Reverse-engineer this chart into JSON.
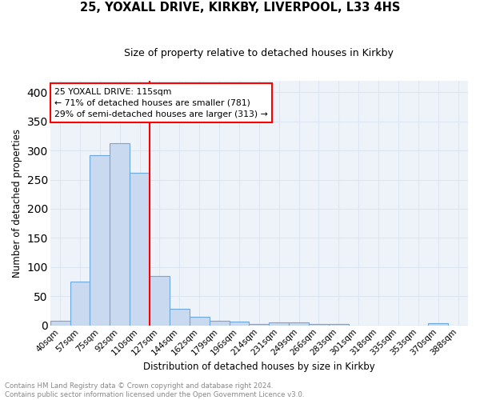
{
  "title1": "25, YOXALL DRIVE, KIRKBY, LIVERPOOL, L33 4HS",
  "title2": "Size of property relative to detached houses in Kirkby",
  "xlabel": "Distribution of detached houses by size in Kirkby",
  "ylabel": "Number of detached properties",
  "bin_labels": [
    "40sqm",
    "57sqm",
    "75sqm",
    "92sqm",
    "110sqm",
    "127sqm",
    "144sqm",
    "162sqm",
    "179sqm",
    "196sqm",
    "214sqm",
    "231sqm",
    "249sqm",
    "266sqm",
    "283sqm",
    "301sqm",
    "318sqm",
    "335sqm",
    "353sqm",
    "370sqm",
    "388sqm"
  ],
  "bar_values": [
    8,
    75,
    292,
    312,
    262,
    85,
    28,
    15,
    8,
    7,
    3,
    5,
    5,
    3,
    3,
    0,
    0,
    0,
    0,
    4,
    0
  ],
  "bar_color": "#c9d9f0",
  "bar_edge_color": "#6fa8dc",
  "red_line_x": 4.5,
  "annotation_text": "25 YOXALL DRIVE: 115sqm\n← 71% of detached houses are smaller (781)\n29% of semi-detached houses are larger (313) →",
  "annotation_box_color": "white",
  "annotation_box_edge_color": "red",
  "vline_color": "red",
  "footer1": "Contains HM Land Registry data © Crown copyright and database right 2024.",
  "footer2": "Contains public sector information licensed under the Open Government Licence v3.0.",
  "ylim": [
    0,
    420
  ],
  "yticks": [
    0,
    50,
    100,
    150,
    200,
    250,
    300,
    350,
    400
  ],
  "grid_color": "#dde6f0",
  "bg_color": "#eef2f9"
}
